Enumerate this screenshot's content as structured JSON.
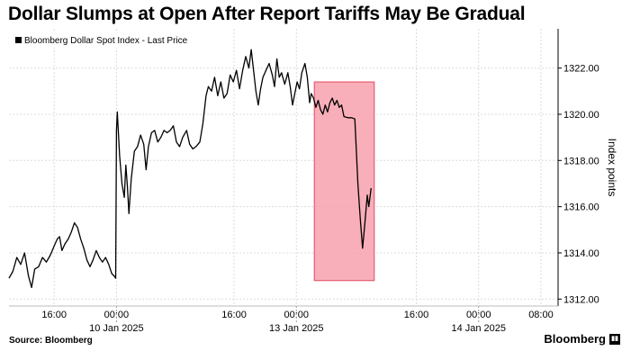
{
  "title": "Dollar Slumps at Open After Report Tariffs May Be Gradual",
  "source": "Source: Bloomberg",
  "brand": "Bloomberg",
  "brand_icon": "bloomberg-terminal-icon",
  "chart_data": {
    "type": "line",
    "series": [
      {
        "name": "Bloomberg Dollar Spot Index - Last Price",
        "color": "#000000",
        "points": [
          [
            0.0,
            1312.9
          ],
          [
            0.5,
            1313.2
          ],
          [
            1.0,
            1313.8
          ],
          [
            1.5,
            1313.5
          ],
          [
            2.0,
            1314.0
          ],
          [
            2.5,
            1313.0
          ],
          [
            2.9,
            1312.5
          ],
          [
            3.3,
            1313.3
          ],
          [
            3.8,
            1313.4
          ],
          [
            4.3,
            1313.8
          ],
          [
            4.8,
            1313.6
          ],
          [
            5.3,
            1313.9
          ],
          [
            5.8,
            1314.3
          ],
          [
            6.2,
            1314.6
          ],
          [
            6.5,
            1314.7
          ],
          [
            6.8,
            1314.1
          ],
          [
            7.2,
            1314.4
          ],
          [
            7.6,
            1314.6
          ],
          [
            8.0,
            1314.9
          ],
          [
            8.4,
            1315.3
          ],
          [
            8.8,
            1315.1
          ],
          [
            9.2,
            1314.6
          ],
          [
            9.6,
            1314.2
          ],
          [
            10.0,
            1313.7
          ],
          [
            10.4,
            1313.4
          ],
          [
            10.8,
            1313.7
          ],
          [
            11.2,
            1314.1
          ],
          [
            11.6,
            1313.8
          ],
          [
            12.0,
            1313.6
          ],
          [
            12.4,
            1313.8
          ],
          [
            12.8,
            1313.5
          ],
          [
            13.2,
            1313.1
          ],
          [
            13.5,
            1313.0
          ],
          [
            13.7,
            1312.9
          ],
          [
            13.8,
            1319.3
          ],
          [
            13.9,
            1320.1
          ],
          [
            14.2,
            1318.2
          ],
          [
            14.5,
            1317.0
          ],
          [
            14.8,
            1316.4
          ],
          [
            15.0,
            1317.8
          ],
          [
            15.2,
            1316.9
          ],
          [
            15.4,
            1315.7
          ],
          [
            15.7,
            1317.2
          ],
          [
            16.1,
            1318.4
          ],
          [
            16.5,
            1318.6
          ],
          [
            16.9,
            1319.1
          ],
          [
            17.3,
            1318.7
          ],
          [
            17.6,
            1317.6
          ],
          [
            17.9,
            1318.6
          ],
          [
            18.3,
            1319.2
          ],
          [
            18.7,
            1319.3
          ],
          [
            19.1,
            1318.8
          ],
          [
            19.5,
            1319.0
          ],
          [
            19.9,
            1319.3
          ],
          [
            20.3,
            1319.2
          ],
          [
            20.7,
            1319.3
          ],
          [
            21.1,
            1319.5
          ],
          [
            21.5,
            1318.8
          ],
          [
            21.9,
            1318.6
          ],
          [
            22.3,
            1319.0
          ],
          [
            22.8,
            1319.3
          ],
          [
            23.2,
            1318.7
          ],
          [
            23.6,
            1318.5
          ],
          [
            24.0,
            1318.6
          ],
          [
            24.5,
            1318.8
          ],
          [
            24.9,
            1319.6
          ],
          [
            25.3,
            1320.8
          ],
          [
            25.6,
            1321.2
          ],
          [
            26.0,
            1321.0
          ],
          [
            26.4,
            1321.6
          ],
          [
            26.8,
            1320.8
          ],
          [
            27.2,
            1321.4
          ],
          [
            27.6,
            1320.7
          ],
          [
            28.0,
            1320.9
          ],
          [
            28.4,
            1321.7
          ],
          [
            28.8,
            1321.4
          ],
          [
            29.2,
            1321.9
          ],
          [
            29.6,
            1321.1
          ],
          [
            30.0,
            1321.9
          ],
          [
            30.4,
            1322.5
          ],
          [
            30.8,
            1322.0
          ],
          [
            31.1,
            1322.8
          ],
          [
            31.4,
            1321.9
          ],
          [
            31.7,
            1321.0
          ],
          [
            32.0,
            1320.4
          ],
          [
            32.3,
            1321.1
          ],
          [
            32.6,
            1321.6
          ],
          [
            33.0,
            1321.9
          ],
          [
            33.4,
            1322.2
          ],
          [
            33.8,
            1321.7
          ],
          [
            34.1,
            1321.2
          ],
          [
            34.4,
            1322.4
          ],
          [
            34.7,
            1321.6
          ],
          [
            35.0,
            1321.8
          ],
          [
            35.4,
            1321.3
          ],
          [
            35.8,
            1321.8
          ],
          [
            36.1,
            1321.2
          ],
          [
            36.4,
            1320.4
          ],
          [
            36.7,
            1320.9
          ],
          [
            37.0,
            1321.4
          ],
          [
            37.3,
            1321.1
          ],
          [
            37.6,
            1321.8
          ],
          [
            38.0,
            1322.2
          ],
          [
            38.3,
            1321.6
          ],
          [
            38.6,
            1320.5
          ],
          [
            38.8,
            1320.9
          ],
          [
            39.1,
            1320.7
          ],
          [
            39.4,
            1320.3
          ],
          [
            39.7,
            1320.6
          ],
          [
            40.0,
            1320.2
          ],
          [
            40.3,
            1320.0
          ],
          [
            40.6,
            1320.4
          ],
          [
            40.9,
            1320.1
          ],
          [
            41.2,
            1320.5
          ],
          [
            41.5,
            1320.7
          ],
          [
            41.8,
            1320.4
          ],
          [
            42.1,
            1320.6
          ],
          [
            42.4,
            1320.3
          ],
          [
            42.7,
            1320.4
          ],
          [
            43.0,
            1319.9
          ],
          [
            43.5,
            1319.85
          ],
          [
            44.0,
            1319.85
          ],
          [
            44.4,
            1319.8
          ],
          [
            44.8,
            1317.0
          ],
          [
            45.1,
            1315.5
          ],
          [
            45.4,
            1314.2
          ],
          [
            45.7,
            1315.3
          ],
          [
            46.0,
            1316.5
          ],
          [
            46.2,
            1316.0
          ],
          [
            46.5,
            1316.8
          ]
        ]
      }
    ],
    "highlight": {
      "x": [
        39.2,
        46.9
      ],
      "y": [
        1312.8,
        1321.4
      ]
    },
    "x_ticks": [
      {
        "x": 5.8,
        "label": "16:00"
      },
      {
        "x": 13.8,
        "label": "00:00"
      },
      {
        "x": 28.9,
        "label": "16:00"
      },
      {
        "x": 36.9,
        "label": "00:00"
      },
      {
        "x": 52.3,
        "label": "16:00"
      },
      {
        "x": 60.3,
        "label": "00:00"
      },
      {
        "x": 68.3,
        "label": "08:00"
      }
    ],
    "date_labels": [
      {
        "x": 13.8,
        "label": "10 Jan 2025"
      },
      {
        "x": 36.9,
        "label": "13 Jan 2025"
      },
      {
        "x": 60.3,
        "label": "14 Jan 2025"
      }
    ],
    "y_ticks": [
      1312,
      1314,
      1316,
      1318,
      1320,
      1322
    ],
    "y_tick_labels": [
      "1312.00",
      "1314.00",
      "1316.00",
      "1318.00",
      "1320.00",
      "1322.00"
    ],
    "ylabel": "Index points",
    "xlim": [
      0,
      70.5
    ],
    "ylim": [
      1311.7,
      1323.7
    ],
    "grid": true,
    "legend": "top-left"
  }
}
